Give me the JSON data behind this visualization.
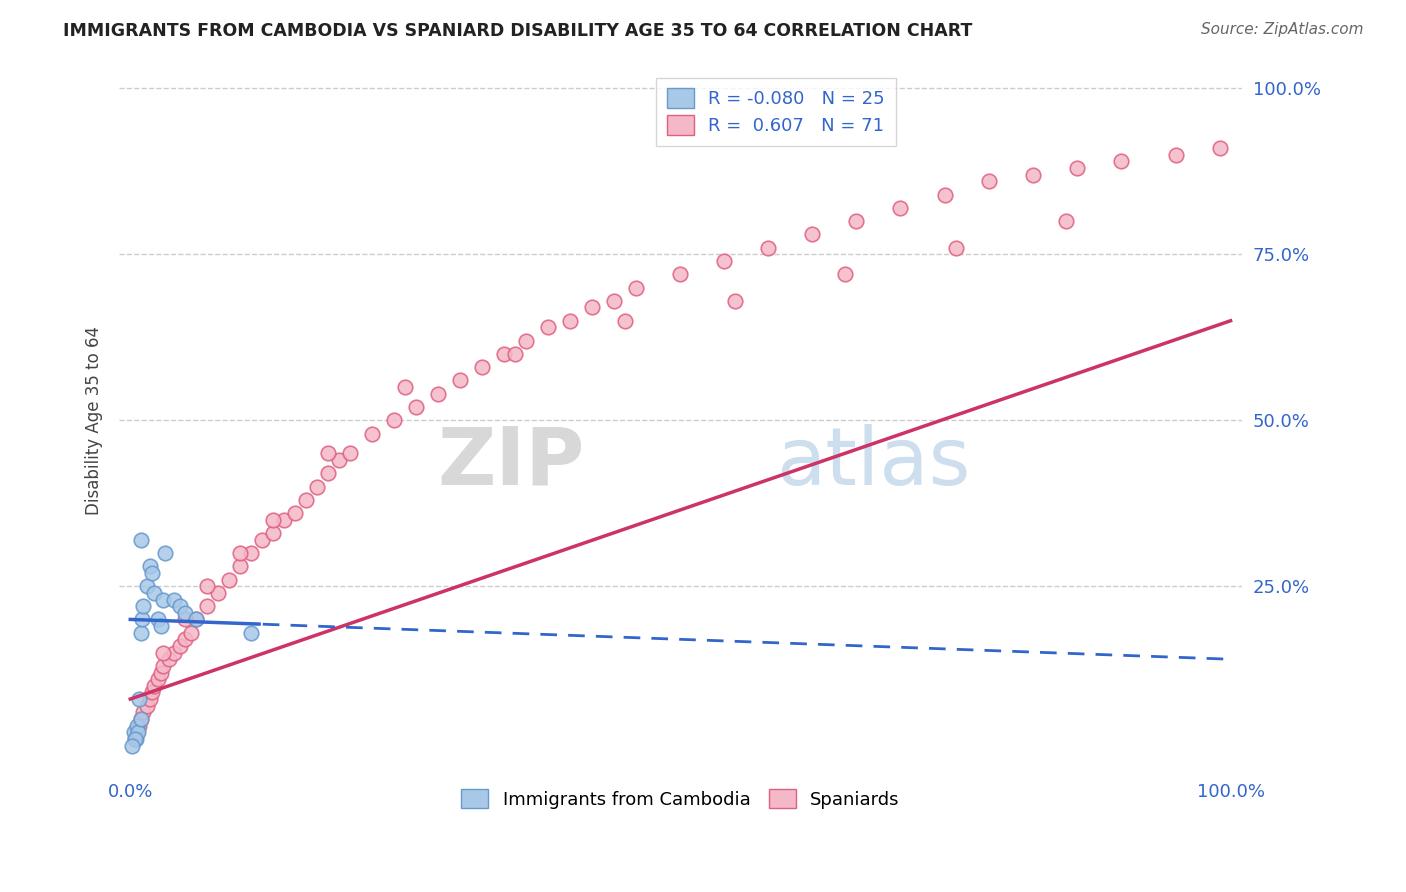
{
  "title": "IMMIGRANTS FROM CAMBODIA VS SPANIARD DISABILITY AGE 35 TO 64 CORRELATION CHART",
  "source": "Source: ZipAtlas.com",
  "ylabel": "Disability Age 35 to 64",
  "watermark_zip": "ZIP",
  "watermark_atlas": "atlas",
  "cambodia_color": "#a8c8e8",
  "cambodia_edge_color": "#6699cc",
  "spaniard_color": "#f4b8c8",
  "spaniard_edge_color": "#e06080",
  "regression_cambodia_color": "#3366cc",
  "regression_spaniard_color": "#cc3366",
  "background_color": "#ffffff",
  "grid_color": "#cccccc",
  "xlim": [
    0.0,
    100.0
  ],
  "ylim": [
    0.0,
    100.0
  ],
  "title_color": "#222222",
  "source_color": "#666666",
  "axis_label_color": "#3366cc",
  "ylabel_color": "#444444",
  "legend_R_color": "#cc3366",
  "legend_N_color": "#3366cc",
  "legend_border_color": "#cccccc",
  "cambodia_R": -0.08,
  "cambodia_N": 25,
  "spaniard_R": 0.607,
  "spaniard_N": 71,
  "cambodia_x": [
    0.3,
    0.5,
    0.6,
    0.7,
    0.8,
    1.0,
    1.0,
    1.1,
    1.2,
    1.5,
    1.8,
    2.0,
    2.2,
    2.5,
    2.8,
    3.0,
    3.2,
    4.0,
    4.5,
    5.0,
    6.0,
    0.4,
    0.2,
    11.0,
    1.0
  ],
  "cambodia_y": [
    3.0,
    2.0,
    4.0,
    3.0,
    8.0,
    5.0,
    18.0,
    20.0,
    22.0,
    25.0,
    28.0,
    27.0,
    24.0,
    20.0,
    19.0,
    23.0,
    30.0,
    23.0,
    22.0,
    21.0,
    20.0,
    2.0,
    1.0,
    18.0,
    32.0
  ],
  "spaniard_x": [
    0.4,
    0.6,
    0.8,
    1.0,
    1.2,
    1.5,
    1.8,
    2.0,
    2.2,
    2.5,
    2.8,
    3.0,
    3.5,
    4.0,
    4.5,
    5.0,
    5.5,
    6.0,
    7.0,
    8.0,
    9.0,
    10.0,
    11.0,
    12.0,
    13.0,
    14.0,
    15.0,
    16.0,
    17.0,
    18.0,
    19.0,
    20.0,
    22.0,
    24.0,
    26.0,
    28.0,
    30.0,
    32.0,
    34.0,
    36.0,
    38.0,
    40.0,
    42.0,
    44.0,
    46.0,
    50.0,
    54.0,
    58.0,
    62.0,
    66.0,
    70.0,
    74.0,
    78.0,
    82.0,
    86.0,
    90.0,
    95.0,
    99.0,
    3.0,
    5.0,
    7.0,
    10.0,
    13.0,
    18.0,
    25.0,
    35.0,
    45.0,
    55.0,
    65.0,
    75.0,
    85.0
  ],
  "spaniard_y": [
    2.0,
    3.0,
    4.0,
    5.0,
    6.0,
    7.0,
    8.0,
    9.0,
    10.0,
    11.0,
    12.0,
    13.0,
    14.0,
    15.0,
    16.0,
    17.0,
    18.0,
    20.0,
    22.0,
    24.0,
    26.0,
    28.0,
    30.0,
    32.0,
    33.0,
    35.0,
    36.0,
    38.0,
    40.0,
    42.0,
    44.0,
    45.0,
    48.0,
    50.0,
    52.0,
    54.0,
    56.0,
    58.0,
    60.0,
    62.0,
    64.0,
    65.0,
    67.0,
    68.0,
    70.0,
    72.0,
    74.0,
    76.0,
    78.0,
    80.0,
    82.0,
    84.0,
    86.0,
    87.0,
    88.0,
    89.0,
    90.0,
    91.0,
    15.0,
    20.0,
    25.0,
    30.0,
    35.0,
    45.0,
    55.0,
    60.0,
    65.0,
    68.0,
    72.0,
    76.0,
    80.0
  ],
  "cam_reg_x0": 0.0,
  "cam_reg_y0": 20.0,
  "cam_reg_x1": 100.0,
  "cam_reg_y1": 14.0,
  "cam_solid_end": 12.0,
  "sp_reg_x0": 0.0,
  "sp_reg_y0": 8.0,
  "sp_reg_x1": 100.0,
  "sp_reg_y1": 65.0
}
